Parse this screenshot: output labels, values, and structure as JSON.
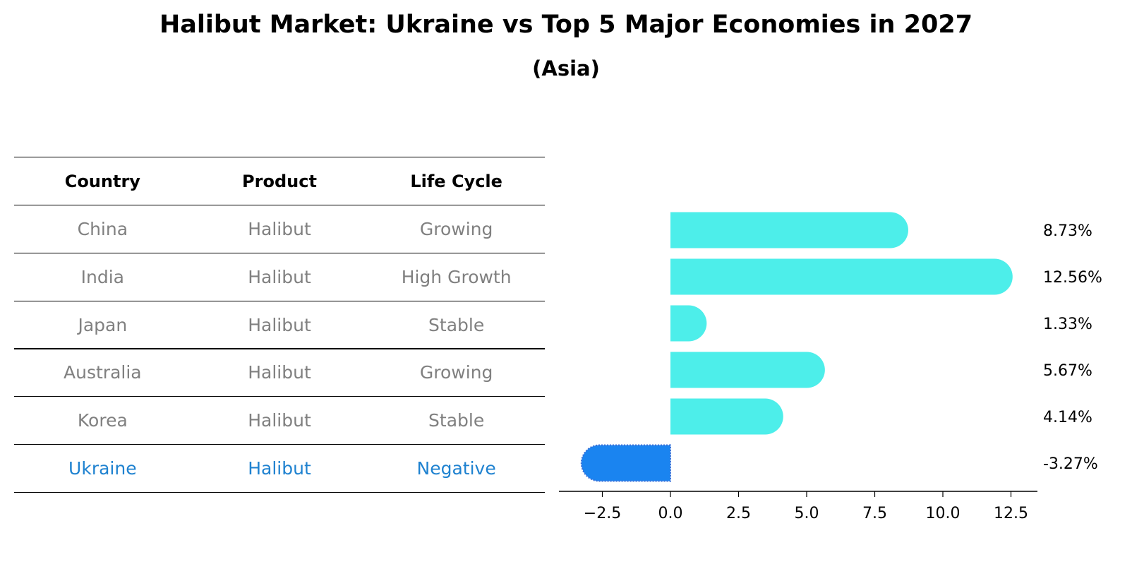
{
  "title": "Halibut Market: Ukraine vs Top 5 Major Economies in 2027",
  "subtitle": "(Asia)",
  "table": {
    "headers": [
      "Country",
      "Product",
      "Life Cycle"
    ],
    "rows": [
      {
        "country": "China",
        "product": "Halibut",
        "life_cycle": "Growing"
      },
      {
        "country": "India",
        "product": "Halibut",
        "life_cycle": "High Growth"
      },
      {
        "country": "Japan",
        "product": "Halibut",
        "life_cycle": "Stable"
      },
      {
        "country": "Australia",
        "product": "Halibut",
        "life_cycle": "Growing"
      },
      {
        "country": "Korea",
        "product": "Halibut",
        "life_cycle": "Stable"
      },
      {
        "country": "Ukraine",
        "product": "Halibut",
        "life_cycle": "Negative"
      }
    ]
  },
  "colors": {
    "bar": "#4deeea",
    "highlight_bar": "#1a84f0",
    "muted_text": "#808080",
    "highlight_text": "#1f82d0"
  },
  "chart_data": {
    "type": "bar",
    "orientation": "horizontal",
    "categories": [
      "China",
      "India",
      "Japan",
      "Australia",
      "Korea",
      "Ukraine"
    ],
    "values": [
      8.73,
      12.56,
      1.33,
      5.67,
      4.14,
      -3.27
    ],
    "value_labels": [
      "8.73%",
      "12.56%",
      "1.33%",
      "5.67%",
      "4.14%",
      "-3.27%"
    ],
    "highlight": "Ukraine",
    "xlim": [
      -4.1,
      13.4
    ],
    "xticks": [
      -2.5,
      0.0,
      2.5,
      5.0,
      7.5,
      10.0,
      12.5
    ],
    "xtick_labels": [
      "−2.5",
      "0.0",
      "2.5",
      "5.0",
      "7.5",
      "10.0",
      "12.5"
    ],
    "title": "Halibut Market: Ukraine vs Top 5 Major Economies in 2027",
    "xlabel": "",
    "ylabel": ""
  }
}
